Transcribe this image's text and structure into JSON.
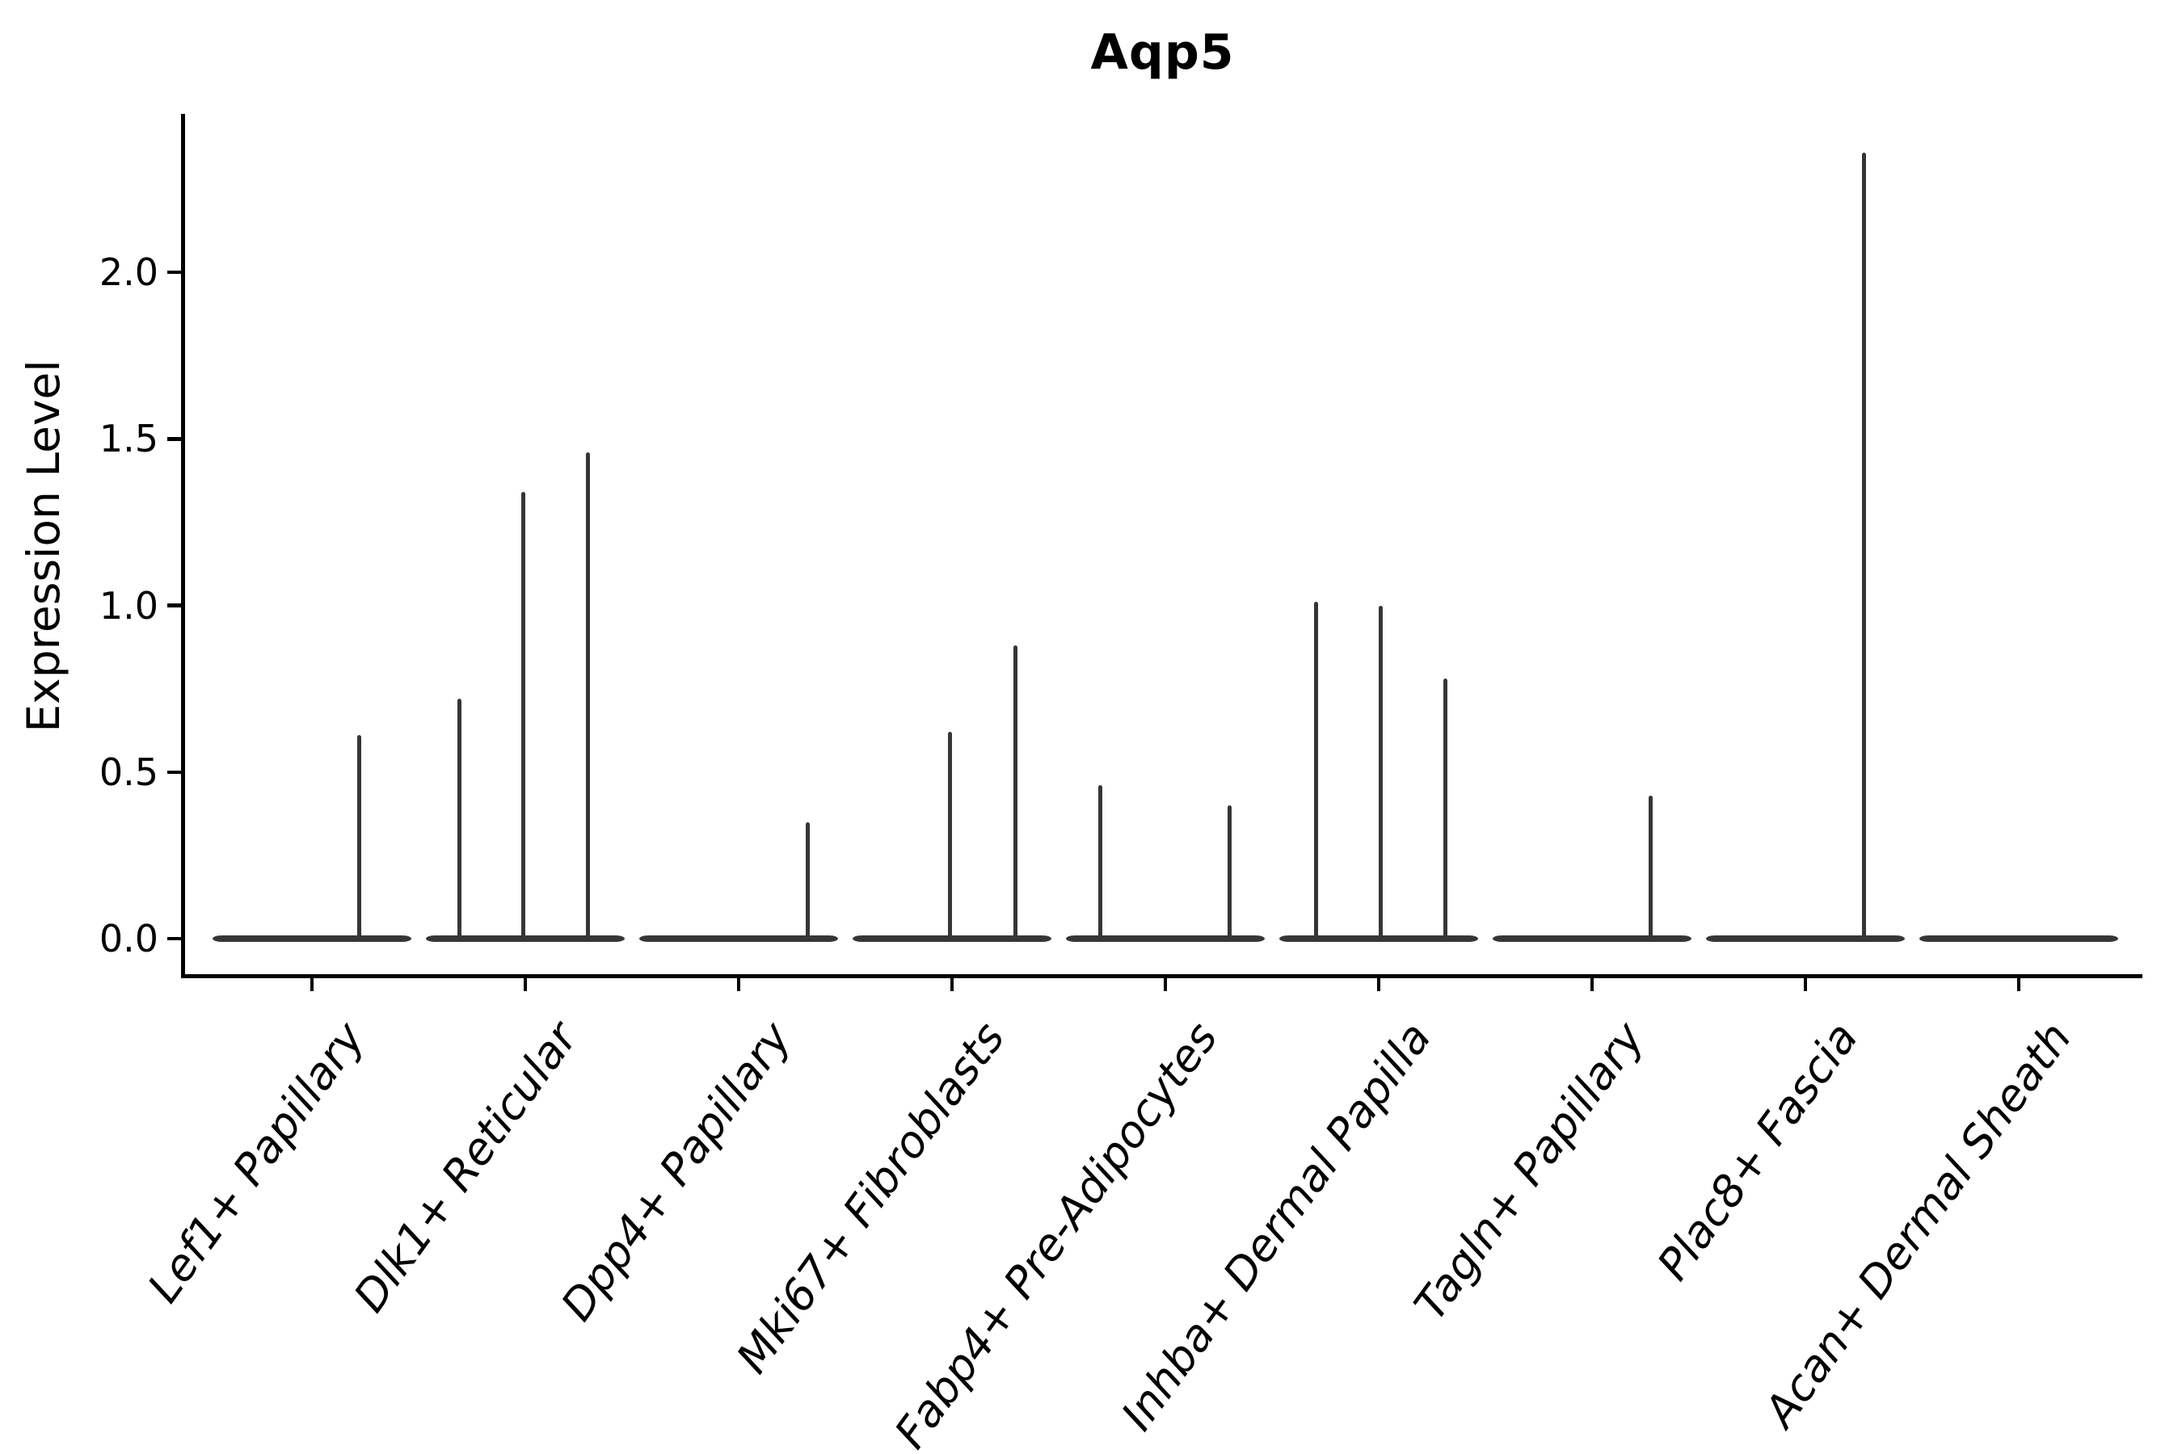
{
  "chart_data": {
    "type": "violin",
    "title": "Aqp5",
    "ylabel": "Expression Level",
    "xlabel": "",
    "ylim": [
      -0.12,
      2.47
    ],
    "grid": false,
    "legend": "none",
    "yticks": {
      "values": [
        0.0,
        0.5,
        1.0,
        1.5,
        2.0
      ],
      "labels": [
        "0.0",
        "0.5",
        "1.0",
        "1.5",
        "2.0"
      ]
    },
    "categories": [
      "Lef1+ Papillary",
      "Dlk1+ Reticular",
      "Dpp4+ Papillary",
      "Mki67+ Fibroblasts",
      "Fabp4+ Pre-Adipocytes",
      "Inhba+ Dermal Papilla",
      "Tagln+ Papillary",
      "Plac8+ Fascia",
      "Acan+ Dermal Sheath"
    ],
    "series": [
      {
        "category": "Lef1+ Papillary",
        "baseline_value": 0,
        "spikes": [
          {
            "offset": 58,
            "value": 0.61
          }
        ]
      },
      {
        "category": "Dlk1+ Reticular",
        "baseline_value": 0,
        "spikes": [
          {
            "offset": -82,
            "value": 0.72
          },
          {
            "offset": -3,
            "value": 1.34
          },
          {
            "offset": 77,
            "value": 1.46
          }
        ]
      },
      {
        "category": "Dpp4+ Papillary",
        "baseline_value": 0,
        "spikes": [
          {
            "offset": 85,
            "value": 0.35
          }
        ]
      },
      {
        "category": "Mki67+ Fibroblasts",
        "baseline_value": 0,
        "spikes": [
          {
            "offset": -3,
            "value": 0.62
          },
          {
            "offset": 78,
            "value": 0.88
          }
        ]
      },
      {
        "category": "Fabp4+ Pre-Adipocytes",
        "baseline_value": 0,
        "spikes": [
          {
            "offset": -81,
            "value": 0.46
          },
          {
            "offset": 79,
            "value": 0.4
          }
        ]
      },
      {
        "category": "Inhba+ Dermal Papilla",
        "baseline_value": 0,
        "spikes": [
          {
            "offset": -78,
            "value": 1.01
          },
          {
            "offset": 2,
            "value": 1.0
          },
          {
            "offset": 82,
            "value": 0.78
          }
        ]
      },
      {
        "category": "Tagln+ Papillary",
        "baseline_value": 0,
        "spikes": [
          {
            "offset": 72,
            "value": 0.43
          }
        ]
      },
      {
        "category": "Plac8+ Fascia",
        "baseline_value": 0,
        "spikes": [
          {
            "offset": 72,
            "value": 2.36
          }
        ]
      },
      {
        "category": "Acan+ Dermal Sheath",
        "baseline_value": 0,
        "spikes": []
      }
    ],
    "colors": {
      "line": "#363636",
      "axis": "#000000",
      "text": "#000000",
      "background": "#ffffff"
    }
  }
}
